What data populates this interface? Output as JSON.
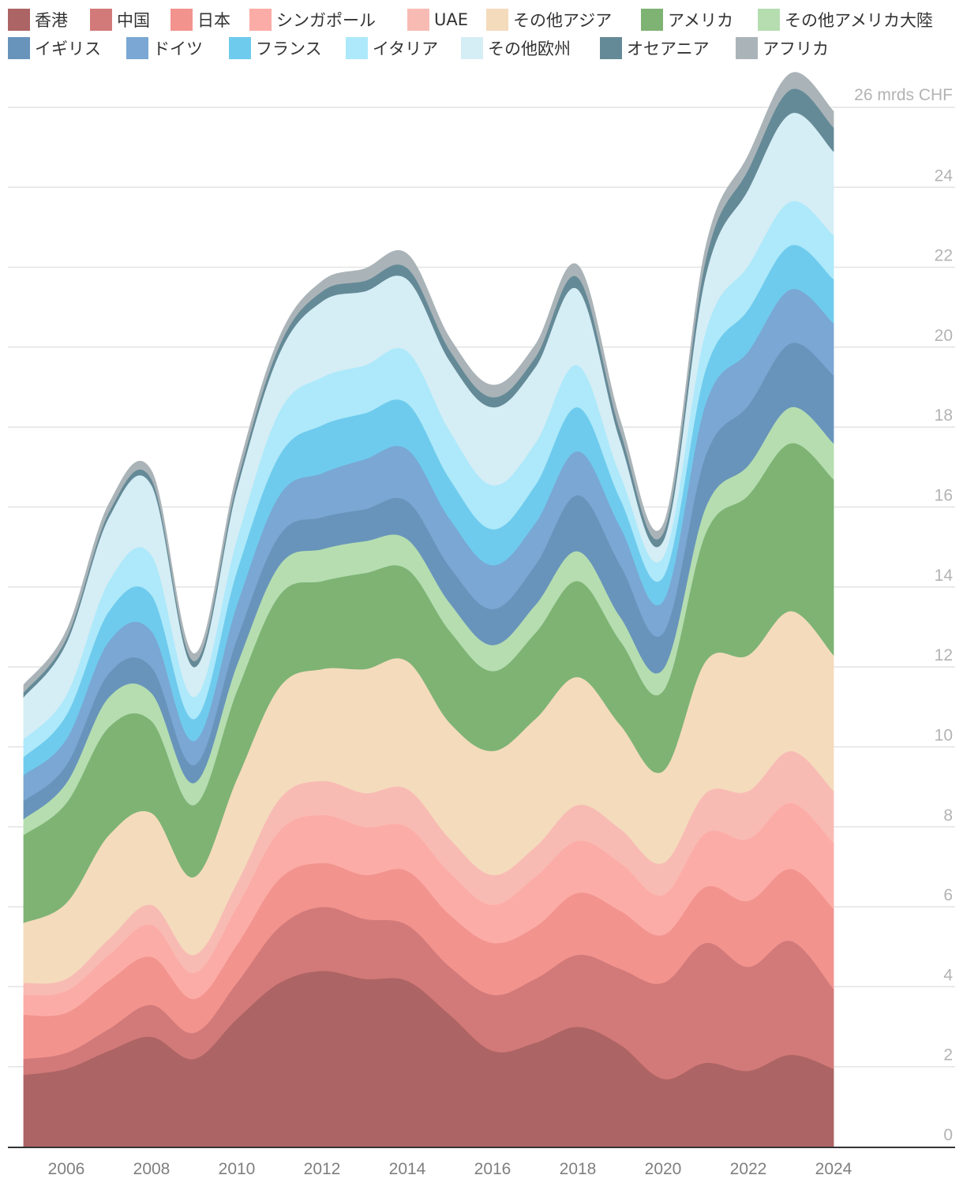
{
  "chart_data": {
    "type": "area",
    "unit_label": "26 mrds CHF",
    "x": [
      2005,
      2006,
      2007,
      2008,
      2009,
      2010,
      2011,
      2012,
      2013,
      2014,
      2015,
      2016,
      2017,
      2018,
      2019,
      2020,
      2021,
      2022,
      2023,
      2024
    ],
    "x_tick_labels": [
      "2006",
      "2008",
      "2010",
      "2012",
      "2014",
      "2016",
      "2018",
      "2020",
      "2022",
      "2024"
    ],
    "x_ticks": [
      2006,
      2008,
      2010,
      2012,
      2014,
      2016,
      2018,
      2020,
      2022,
      2024
    ],
    "y_ticks": [
      0,
      2,
      4,
      6,
      8,
      10,
      12,
      14,
      16,
      18,
      20,
      22,
      24
    ],
    "ylim": [
      0,
      26
    ],
    "grid": true,
    "legend_position": "top",
    "series": [
      {
        "name": "香港",
        "color": "#ad6464",
        "values": [
          1.8,
          1.95,
          2.4,
          2.75,
          2.2,
          3.2,
          4.1,
          4.4,
          4.2,
          4.15,
          3.3,
          2.4,
          2.6,
          3.0,
          2.55,
          1.7,
          2.1,
          1.9,
          2.3,
          1.95
        ]
      },
      {
        "name": "中国",
        "color": "#d27a79",
        "values": [
          0.4,
          0.4,
          0.55,
          0.8,
          0.65,
          0.9,
          1.4,
          1.6,
          1.5,
          1.4,
          1.2,
          1.4,
          1.6,
          1.8,
          1.9,
          2.4,
          3.0,
          2.6,
          2.85,
          2.0
        ]
      },
      {
        "name": "日本",
        "color": "#f2938e",
        "values": [
          1.1,
          1.0,
          1.2,
          1.2,
          0.85,
          0.95,
          1.2,
          1.1,
          1.1,
          1.35,
          1.3,
          1.3,
          1.3,
          1.55,
          1.45,
          1.2,
          1.4,
          1.65,
          1.8,
          2.0
        ]
      },
      {
        "name": "シンガポール",
        "color": "#fcaca6",
        "values": [
          0.5,
          0.55,
          0.65,
          0.8,
          0.65,
          0.95,
          1.2,
          1.2,
          1.2,
          1.1,
          1.05,
          0.95,
          1.25,
          1.3,
          1.2,
          1.0,
          1.35,
          1.55,
          1.65,
          1.65
        ]
      },
      {
        "name": "UAE",
        "color": "#f8bbb4",
        "values": [
          0.3,
          0.3,
          0.4,
          0.5,
          0.45,
          0.6,
          0.8,
          0.85,
          0.85,
          0.95,
          0.85,
          0.75,
          0.75,
          0.9,
          0.85,
          0.8,
          1.0,
          1.2,
          1.3,
          1.3
        ]
      },
      {
        "name": "その他アジア",
        "color": "#f4dbbc",
        "values": [
          1.5,
          1.9,
          2.6,
          2.3,
          1.95,
          2.6,
          2.8,
          2.8,
          3.1,
          3.2,
          2.9,
          3.1,
          3.2,
          3.2,
          2.6,
          2.3,
          3.3,
          3.4,
          3.5,
          3.4
        ]
      },
      {
        "name": "アメリカ",
        "color": "#7eb374",
        "values": [
          2.2,
          2.5,
          2.7,
          2.3,
          1.8,
          2.2,
          2.3,
          2.2,
          2.4,
          2.3,
          2.3,
          2.0,
          2.15,
          2.4,
          2.1,
          2.0,
          3.2,
          4.0,
          4.2,
          4.4
        ]
      },
      {
        "name": "その他アメリカ大陸",
        "color": "#b5ddb0",
        "values": [
          0.4,
          0.5,
          0.75,
          0.7,
          0.55,
          0.65,
          0.75,
          0.8,
          0.8,
          0.75,
          0.7,
          0.65,
          0.7,
          0.75,
          0.6,
          0.55,
          0.65,
          0.75,
          0.9,
          0.9
        ]
      },
      {
        "name": "イギリス",
        "color": "#6894bb",
        "values": [
          0.45,
          0.45,
          0.6,
          0.65,
          0.45,
          0.65,
          0.75,
          0.8,
          0.8,
          0.95,
          0.9,
          0.9,
          1.0,
          1.4,
          1.3,
          0.9,
          1.3,
          1.5,
          1.6,
          1.7
        ]
      },
      {
        "name": "ドイツ",
        "color": "#7aa7d3",
        "values": [
          0.65,
          0.65,
          0.8,
          0.9,
          0.6,
          0.85,
          1.0,
          1.1,
          1.25,
          1.3,
          1.2,
          1.1,
          1.05,
          1.1,
          0.95,
          0.8,
          1.3,
          1.35,
          1.35,
          1.3
        ]
      },
      {
        "name": "フランス",
        "color": "#6fcbed",
        "values": [
          0.45,
          0.6,
          0.75,
          0.9,
          0.55,
          0.85,
          1.0,
          1.2,
          1.15,
          1.15,
          1.0,
          0.9,
          0.95,
          1.1,
          0.7,
          0.6,
          0.85,
          1.05,
          1.1,
          1.1
        ]
      },
      {
        "name": "イタリア",
        "color": "#ade9fa",
        "values": [
          0.45,
          0.5,
          0.75,
          1.0,
          0.55,
          0.8,
          1.1,
          1.2,
          1.2,
          1.3,
          1.2,
          1.1,
          1.05,
          1.05,
          0.6,
          0.5,
          0.95,
          1.1,
          1.1,
          1.1
        ]
      },
      {
        "name": "その他欧州",
        "color": "#d5edf5",
        "values": [
          1.05,
          1.3,
          1.6,
          1.75,
          0.75,
          1.25,
          1.45,
          1.9,
          1.85,
          1.8,
          1.75,
          1.95,
          1.9,
          1.9,
          0.85,
          0.4,
          1.4,
          1.9,
          2.2,
          2.1
        ]
      },
      {
        "name": "オセアニア",
        "color": "#658a97",
        "values": [
          0.12,
          0.12,
          0.13,
          0.15,
          0.15,
          0.17,
          0.2,
          0.25,
          0.26,
          0.28,
          0.27,
          0.25,
          0.25,
          0.3,
          0.25,
          0.2,
          0.4,
          0.5,
          0.6,
          0.6
        ]
      },
      {
        "name": "アフリカ",
        "color": "#aab4b8",
        "values": [
          0.18,
          0.18,
          0.2,
          0.2,
          0.18,
          0.2,
          0.2,
          0.25,
          0.3,
          0.35,
          0.3,
          0.3,
          0.3,
          0.3,
          0.25,
          0.2,
          0.3,
          0.35,
          0.4,
          0.4
        ]
      }
    ]
  }
}
